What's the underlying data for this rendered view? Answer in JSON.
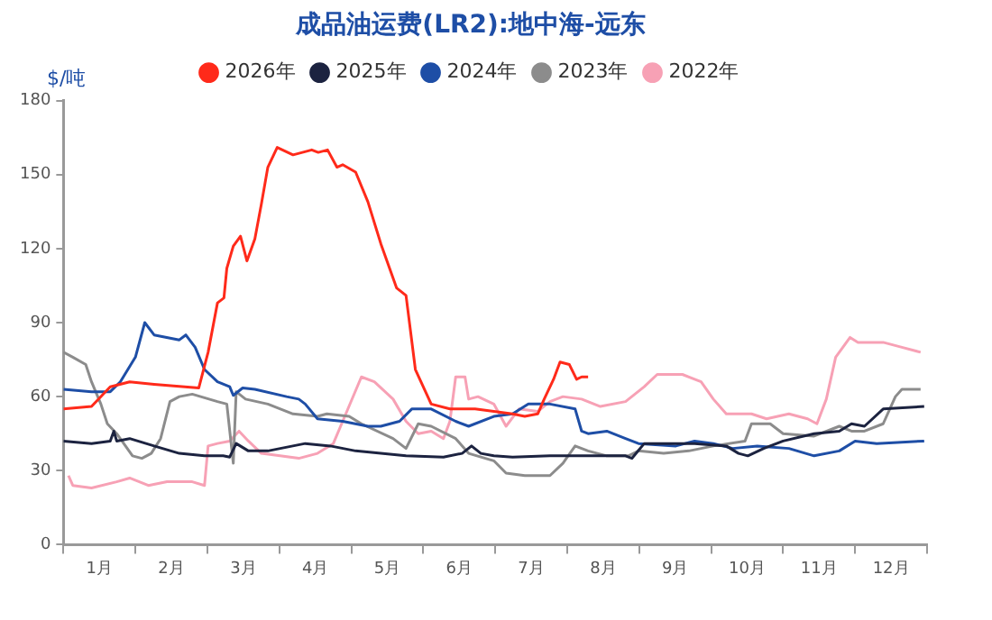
{
  "chart_data": {
    "type": "line",
    "title": "成品油运费(LR2):地中海-远东",
    "ylabel": "$/吨",
    "legend": "top",
    "marker": "none",
    "xlim": [
      0,
      12
    ],
    "xticks": [
      {
        "value": 0,
        "label": null
      },
      {
        "value": 0.5,
        "label": "1月"
      },
      {
        "value": 1,
        "label": null
      },
      {
        "value": 1.5,
        "label": "2月"
      },
      {
        "value": 2,
        "label": null
      },
      {
        "value": 2.5,
        "label": "3月"
      },
      {
        "value": 3,
        "label": null
      },
      {
        "value": 3.5,
        "label": "4月"
      },
      {
        "value": 4,
        "label": null
      },
      {
        "value": 4.5,
        "label": "5月"
      },
      {
        "value": 5,
        "label": null
      },
      {
        "value": 5.5,
        "label": "6月"
      },
      {
        "value": 6,
        "label": null
      },
      {
        "value": 6.5,
        "label": "7月"
      },
      {
        "value": 7,
        "label": null
      },
      {
        "value": 7.5,
        "label": "8月"
      },
      {
        "value": 8,
        "label": null
      },
      {
        "value": 8.5,
        "label": "9月"
      },
      {
        "value": 9,
        "label": null
      },
      {
        "value": 9.5,
        "label": "10月"
      },
      {
        "value": 10,
        "label": null
      },
      {
        "value": 10.5,
        "label": "11月"
      },
      {
        "value": 11,
        "label": null
      },
      {
        "value": 11.5,
        "label": "12月"
      },
      {
        "value": 12,
        "label": null
      }
    ],
    "ylim": [
      0,
      180
    ],
    "yticks": [
      0,
      30,
      60,
      90,
      120,
      150,
      180
    ],
    "series": [
      {
        "name": "2026年",
        "color": "#ff2a1a",
        "x": [
          0,
          0.39,
          0.65,
          0.92,
          1.26,
          1.88,
          2.01,
          2.14,
          2.23,
          2.27,
          2.36,
          2.46,
          2.55,
          2.66,
          2.75,
          2.84,
          2.97,
          3.19,
          3.45,
          3.54,
          3.67,
          3.8,
          3.88,
          4.06,
          4.23,
          4.41,
          4.63,
          4.76,
          4.89,
          5.11,
          5.37,
          5.72,
          5.98,
          6.24,
          6.41,
          6.59,
          6.68,
          6.81,
          6.9,
          7.03,
          7.13,
          7.2,
          7.29
        ],
        "values": [
          55,
          56,
          64,
          66,
          65,
          63.5,
          78,
          98,
          100,
          112,
          121,
          125,
          115,
          124,
          138,
          153,
          161,
          158,
          160,
          159,
          160,
          153,
          154,
          151,
          139,
          122,
          104,
          101,
          71,
          57,
          55,
          55,
          54,
          53,
          52,
          53,
          59,
          67,
          74,
          73,
          67,
          68,
          68
        ]
      },
      {
        "name": "2025年",
        "color": "#1c2340",
        "x": [
          0,
          0.39,
          0.65,
          0.7,
          0.74,
          0.92,
          1.26,
          1.61,
          1.96,
          2.22,
          2.31,
          2.4,
          2.57,
          2.84,
          3.36,
          3.71,
          4.06,
          4.76,
          5.28,
          5.54,
          5.67,
          5.8,
          5.98,
          6.24,
          6.76,
          7.46,
          7.81,
          7.9,
          8.07,
          8.51,
          8.77,
          9.21,
          9.38,
          9.51,
          9.73,
          10,
          10.43,
          10.78,
          10.95,
          11.13,
          11.39,
          11.96
        ],
        "values": [
          42,
          41,
          42,
          46,
          42,
          43,
          40,
          37,
          36,
          36,
          35.5,
          41,
          38,
          38,
          41,
          40,
          38,
          36,
          35.5,
          37,
          40,
          37,
          36,
          35.5,
          36,
          36,
          36,
          35,
          41,
          41,
          41,
          40,
          37,
          36,
          39,
          42,
          45,
          46,
          49,
          48,
          55,
          56
        ]
      },
      {
        "name": "2024年",
        "color": "#1e4ea6",
        "x": [
          0,
          0.39,
          0.65,
          0.79,
          1,
          1.13,
          1.26,
          1.61,
          1.7,
          1.83,
          1.96,
          2.14,
          2.31,
          2.36,
          2.49,
          2.66,
          3.1,
          3.27,
          3.36,
          3.53,
          3.88,
          4.23,
          4.41,
          4.67,
          4.84,
          5.11,
          5.45,
          5.63,
          5.98,
          6.24,
          6.46,
          6.76,
          7.11,
          7.2,
          7.29,
          7.55,
          7.81,
          7.99,
          8.51,
          8.77,
          9.03,
          9.3,
          9.64,
          10.08,
          10.43,
          10.78,
          11,
          11.3,
          11.96
        ],
        "values": [
          63,
          62,
          62,
          66,
          76,
          90,
          85,
          83,
          85,
          80,
          71,
          66,
          64,
          60.5,
          63.5,
          63,
          60,
          59,
          57,
          51,
          50,
          48,
          48,
          50,
          55,
          55,
          50,
          48,
          52,
          53,
          57,
          57,
          55,
          46,
          45,
          46,
          43,
          41,
          40,
          42,
          41,
          39,
          40,
          39,
          36,
          38,
          42,
          41,
          42
        ]
      },
      {
        "name": "2023年",
        "color": "#8c8c8c",
        "x": [
          0,
          0.13,
          0.31,
          0.39,
          0.52,
          0.61,
          0.74,
          0.96,
          1.09,
          1.22,
          1.35,
          1.48,
          1.61,
          1.79,
          2.14,
          2.27,
          2.36,
          2.4,
          2.53,
          2.84,
          3.19,
          3.53,
          3.66,
          3.97,
          4.14,
          4.58,
          4.76,
          4.93,
          5.11,
          5.45,
          5.63,
          5.98,
          6.15,
          6.41,
          6.76,
          6.94,
          7.11,
          7.29,
          7.55,
          7.85,
          7.99,
          8.34,
          8.69,
          9.03,
          9.47,
          9.56,
          9.82,
          10,
          10.43,
          10.78,
          10.95,
          11.13,
          11.39,
          11.56,
          11.65,
          11.91
        ],
        "values": [
          78,
          76,
          73,
          66,
          57,
          49,
          45,
          36,
          35,
          37,
          43,
          58,
          60,
          61,
          58,
          57,
          33,
          62,
          59,
          57,
          53,
          52,
          53,
          52,
          49,
          43,
          39,
          49,
          48,
          43,
          37,
          34,
          29,
          28,
          28,
          33,
          40,
          38,
          36,
          36,
          38,
          37,
          38,
          40,
          42,
          49,
          49,
          45,
          44,
          48,
          46,
          46,
          49,
          60,
          63,
          63
        ]
      },
      {
        "name": "2022年",
        "color": "#f7a1b5",
        "x": [
          0.07,
          0.13,
          0.39,
          0.74,
          0.92,
          1.18,
          1.44,
          1.79,
          1.96,
          2.01,
          2.14,
          2.31,
          2.44,
          2.57,
          2.75,
          3.01,
          3.27,
          3.53,
          3.75,
          3.88,
          4.14,
          4.32,
          4.58,
          4.76,
          4.93,
          5.11,
          5.28,
          5.37,
          5.45,
          5.58,
          5.63,
          5.76,
          5.98,
          6.15,
          6.33,
          6.59,
          6.76,
          6.94,
          7.2,
          7.46,
          7.81,
          8.07,
          8.25,
          8.6,
          8.86,
          9.03,
          9.21,
          9.56,
          9.77,
          10.08,
          10.34,
          10.47,
          10.6,
          10.73,
          10.93,
          11.04,
          11.39,
          11.65,
          11.91
        ],
        "values": [
          28,
          24,
          23,
          25.5,
          27,
          24,
          25.5,
          25.5,
          24,
          40,
          41,
          42,
          46,
          42,
          37,
          36,
          35,
          37,
          41,
          50,
          68,
          66,
          59,
          50,
          45,
          46,
          43,
          50,
          68,
          68,
          59,
          60,
          57,
          48,
          55,
          54,
          58,
          60,
          59,
          56,
          58,
          64,
          69,
          69,
          66,
          59,
          53,
          53,
          51,
          53,
          51,
          49,
          59,
          76,
          84,
          82,
          82,
          80,
          78
        ]
      }
    ]
  }
}
